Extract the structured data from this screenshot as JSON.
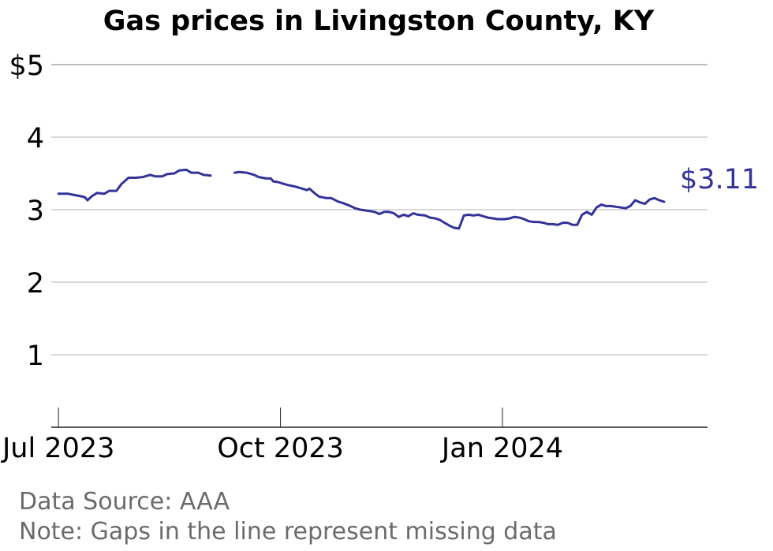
{
  "chart_data": {
    "type": "line",
    "title": "Gas prices in Livingston County, KY",
    "xlabel": "",
    "ylabel": "",
    "ylim": [
      0,
      5
    ],
    "xlim": [
      "2023-06-28",
      "2024-03-26"
    ],
    "grid": "horizontal",
    "y_ticks": [
      {
        "value": 1,
        "label": "1"
      },
      {
        "value": 2,
        "label": "2"
      },
      {
        "value": 3,
        "label": "3"
      },
      {
        "value": 4,
        "label": "4"
      },
      {
        "value": 5,
        "label": "$5"
      }
    ],
    "x_ticks": [
      {
        "date": "2023-07-01",
        "label": "Jul 2023"
      },
      {
        "date": "2023-10-01",
        "label": "Oct 2023"
      },
      {
        "date": "2024-01-01",
        "label": "Jan 2024"
      }
    ],
    "end_label": "$3.11",
    "line_color": "#33339a",
    "segments": [
      [
        [
          "2023-07-01",
          3.22
        ],
        [
          "2023-07-05",
          3.22
        ],
        [
          "2023-07-08",
          3.2
        ],
        [
          "2023-07-11",
          3.18
        ],
        [
          "2023-07-12",
          3.17
        ],
        [
          "2023-07-13",
          3.13
        ],
        [
          "2023-07-15",
          3.19
        ],
        [
          "2023-07-17",
          3.23
        ],
        [
          "2023-07-20",
          3.22
        ],
        [
          "2023-07-22",
          3.26
        ],
        [
          "2023-07-25",
          3.26
        ],
        [
          "2023-07-27",
          3.35
        ],
        [
          "2023-07-30",
          3.44
        ],
        [
          "2023-08-02",
          3.44
        ],
        [
          "2023-08-05",
          3.45
        ],
        [
          "2023-08-08",
          3.48
        ],
        [
          "2023-08-10",
          3.46
        ],
        [
          "2023-08-13",
          3.46
        ],
        [
          "2023-08-15",
          3.49
        ],
        [
          "2023-08-18",
          3.5
        ],
        [
          "2023-08-20",
          3.54
        ],
        [
          "2023-08-23",
          3.55
        ],
        [
          "2023-08-25",
          3.51
        ],
        [
          "2023-08-28",
          3.51
        ],
        [
          "2023-08-30",
          3.48
        ],
        [
          "2023-09-02",
          3.47
        ]
      ],
      [
        [
          "2023-09-12",
          3.51
        ],
        [
          "2023-09-14",
          3.52
        ],
        [
          "2023-09-17",
          3.51
        ],
        [
          "2023-09-20",
          3.48
        ],
        [
          "2023-09-22",
          3.45
        ],
        [
          "2023-09-25",
          3.43
        ],
        [
          "2023-09-27",
          3.43
        ],
        [
          "2023-09-28",
          3.39
        ],
        [
          "2023-09-30",
          3.38
        ],
        [
          "2023-10-02",
          3.36
        ],
        [
          "2023-10-04",
          3.34
        ],
        [
          "2023-10-07",
          3.32
        ],
        [
          "2023-10-10",
          3.29
        ],
        [
          "2023-10-12",
          3.27
        ],
        [
          "2023-10-13",
          3.29
        ],
        [
          "2023-10-15",
          3.23
        ],
        [
          "2023-10-17",
          3.18
        ],
        [
          "2023-10-20",
          3.16
        ],
        [
          "2023-10-22",
          3.16
        ],
        [
          "2023-10-25",
          3.11
        ],
        [
          "2023-10-27",
          3.09
        ],
        [
          "2023-10-30",
          3.05
        ],
        [
          "2023-11-01",
          3.02
        ],
        [
          "2023-11-03",
          3.0
        ],
        [
          "2023-11-05",
          2.99
        ],
        [
          "2023-11-07",
          2.98
        ],
        [
          "2023-11-09",
          2.97
        ],
        [
          "2023-11-11",
          2.94
        ],
        [
          "2023-11-13",
          2.97
        ],
        [
          "2023-11-15",
          2.97
        ],
        [
          "2023-11-17",
          2.95
        ],
        [
          "2023-11-19",
          2.9
        ],
        [
          "2023-11-21",
          2.93
        ],
        [
          "2023-11-23",
          2.91
        ],
        [
          "2023-11-25",
          2.95
        ],
        [
          "2023-11-27",
          2.93
        ],
        [
          "2023-11-30",
          2.92
        ],
        [
          "2023-12-02",
          2.89
        ],
        [
          "2023-12-04",
          2.88
        ],
        [
          "2023-12-06",
          2.86
        ],
        [
          "2023-12-08",
          2.82
        ],
        [
          "2023-12-10",
          2.78
        ],
        [
          "2023-12-12",
          2.75
        ],
        [
          "2023-12-14",
          2.74
        ],
        [
          "2023-12-16",
          2.92
        ],
        [
          "2023-12-18",
          2.93
        ],
        [
          "2023-12-20",
          2.92
        ],
        [
          "2023-12-22",
          2.93
        ],
        [
          "2023-12-24",
          2.91
        ],
        [
          "2023-12-26",
          2.89
        ],
        [
          "2023-12-28",
          2.88
        ],
        [
          "2023-12-30",
          2.87
        ],
        [
          "2024-01-02",
          2.87
        ],
        [
          "2024-01-04",
          2.88
        ],
        [
          "2024-01-06",
          2.9
        ],
        [
          "2024-01-08",
          2.89
        ],
        [
          "2024-01-10",
          2.87
        ],
        [
          "2024-01-12",
          2.84
        ],
        [
          "2024-01-14",
          2.83
        ],
        [
          "2024-01-16",
          2.83
        ],
        [
          "2024-01-18",
          2.82
        ],
        [
          "2024-01-20",
          2.8
        ],
        [
          "2024-01-22",
          2.8
        ],
        [
          "2024-01-24",
          2.79
        ],
        [
          "2024-01-26",
          2.82
        ],
        [
          "2024-01-28",
          2.82
        ],
        [
          "2024-01-30",
          2.79
        ],
        [
          "2024-02-01",
          2.79
        ],
        [
          "2024-02-03",
          2.93
        ],
        [
          "2024-02-05",
          2.97
        ],
        [
          "2024-02-07",
          2.93
        ],
        [
          "2024-02-09",
          3.03
        ],
        [
          "2024-02-11",
          3.07
        ],
        [
          "2024-02-13",
          3.05
        ],
        [
          "2024-02-15",
          3.05
        ],
        [
          "2024-02-17",
          3.04
        ],
        [
          "2024-02-19",
          3.03
        ],
        [
          "2024-02-21",
          3.02
        ],
        [
          "2024-02-23",
          3.05
        ],
        [
          "2024-02-25",
          3.13
        ],
        [
          "2024-02-27",
          3.1
        ],
        [
          "2024-02-29",
          3.08
        ],
        [
          "2024-03-02",
          3.14
        ],
        [
          "2024-03-04",
          3.16
        ],
        [
          "2024-03-06",
          3.13
        ],
        [
          "2024-03-08",
          3.11
        ]
      ]
    ]
  },
  "footer": {
    "source": "Data Source: AAA",
    "note": "Note: Gaps in the line represent missing data"
  }
}
